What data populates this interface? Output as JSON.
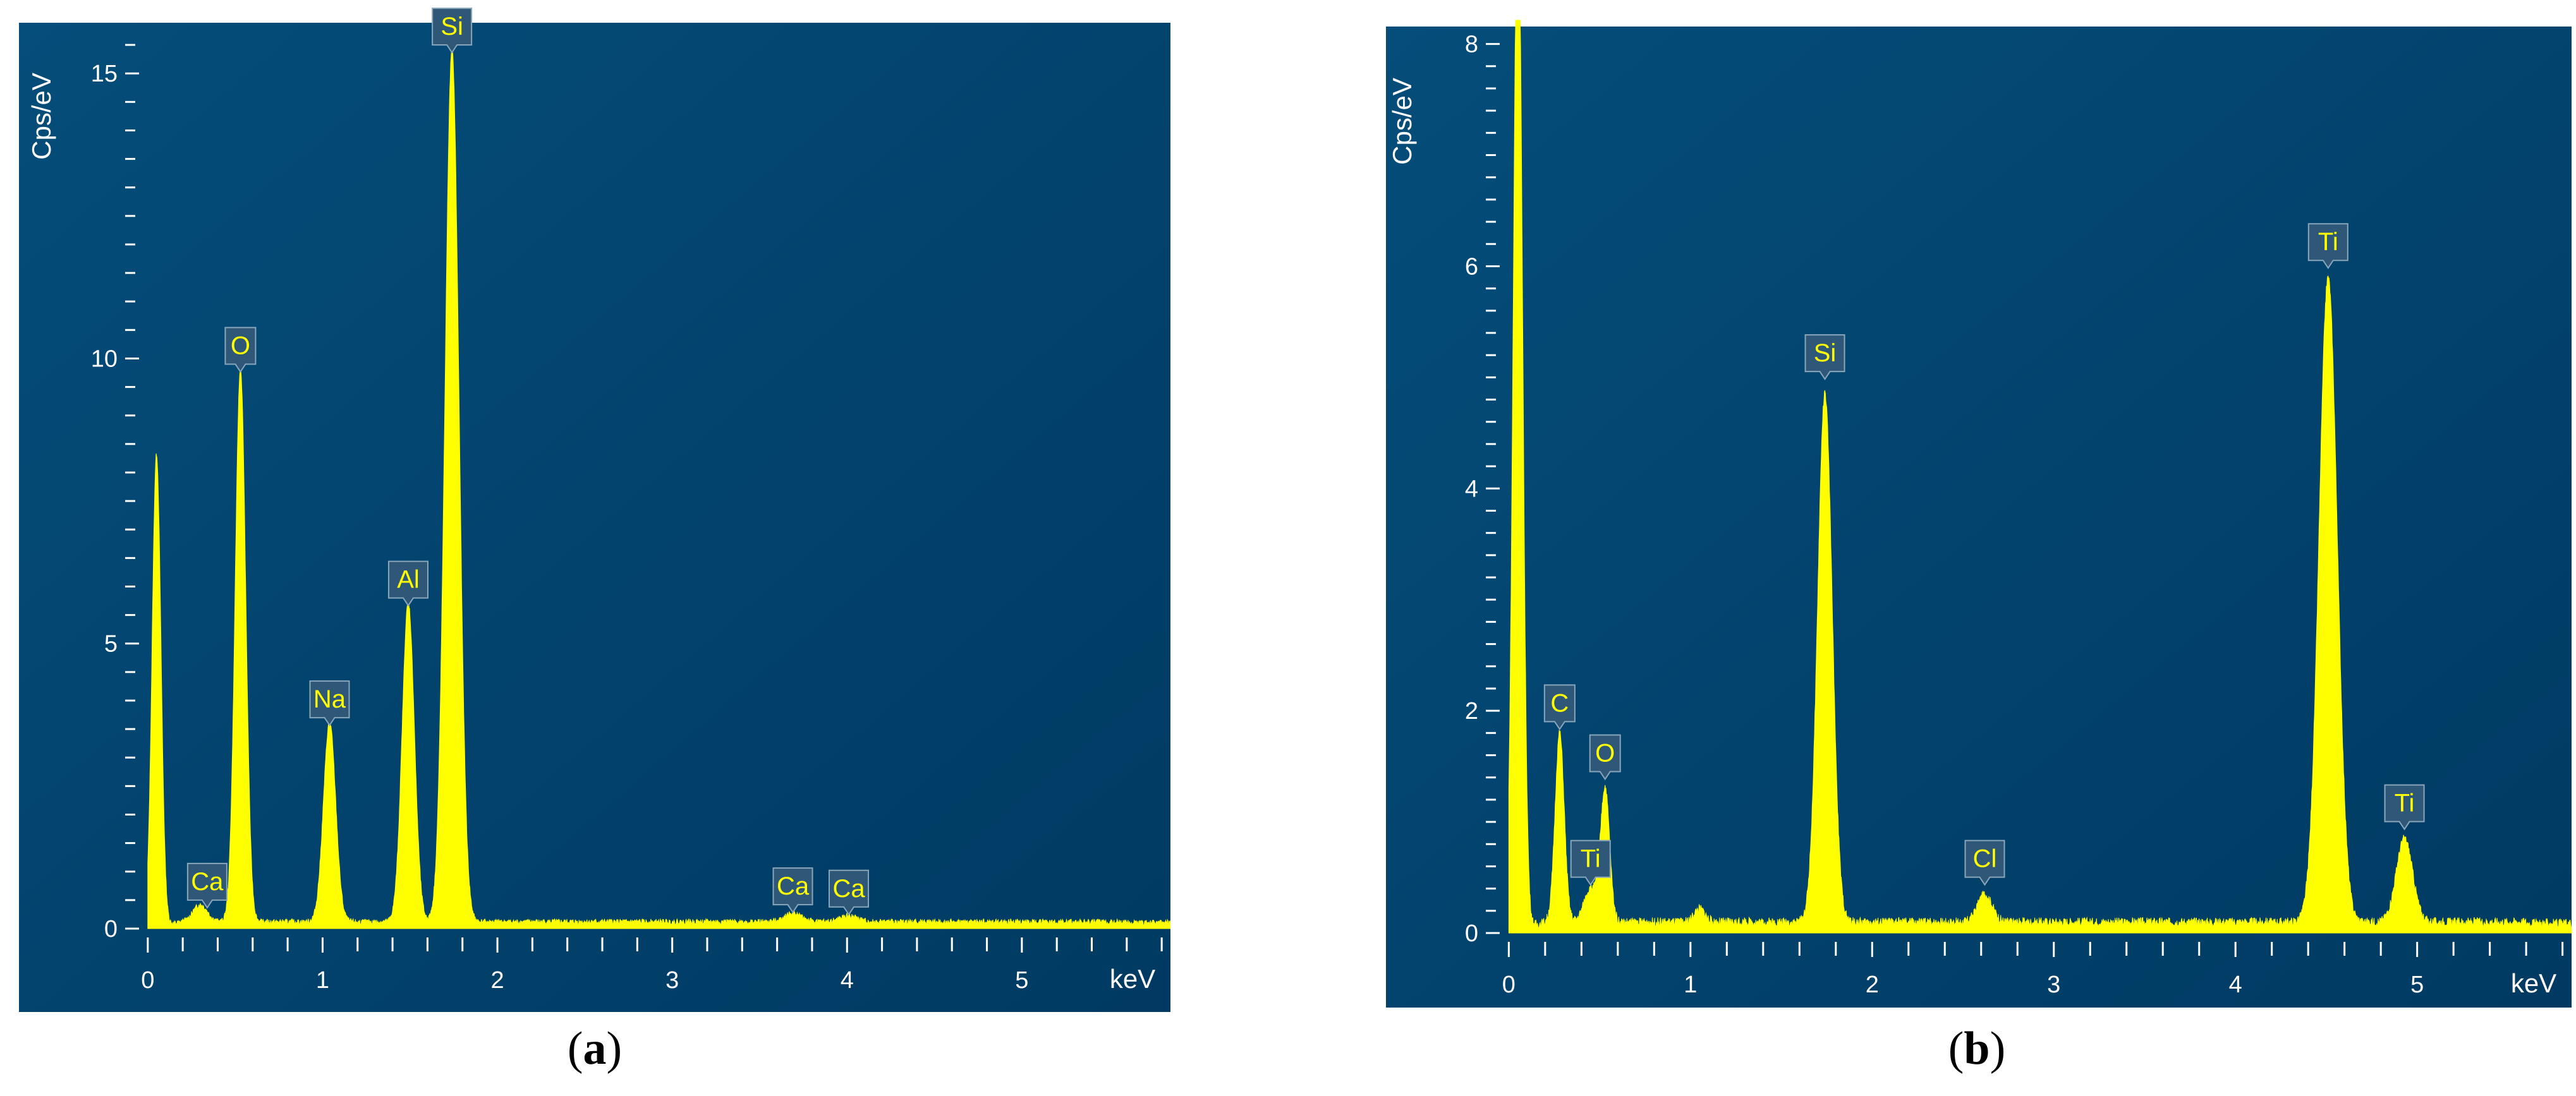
{
  "colors": {
    "plot_bg_top": "#034a76",
    "plot_bg_bottom": "#003a63",
    "spectrum": "#ffff00",
    "label_box": "#2f5878",
    "label_stroke": "#8aa6bb",
    "axis_text": "#ffffff"
  },
  "panels": [
    {
      "id": "a",
      "caption_open": "(",
      "caption_letter": "a",
      "caption_close": ")"
    },
    {
      "id": "b",
      "caption_open": "(",
      "caption_letter": "b",
      "caption_close": ")"
    }
  ],
  "chart_data": [
    {
      "type": "line",
      "ylabel": "Cps/eV",
      "xlabel": "keV",
      "xlim": [
        -0.05,
        5.85
      ],
      "ylim": [
        0,
        15.8
      ],
      "xticks": [
        0,
        1,
        2,
        3,
        4,
        5
      ],
      "yticks": [
        0,
        5,
        10,
        15
      ],
      "ymajor": 5,
      "yminor": 0.5,
      "background": 0.12,
      "peaks": [
        {
          "x": 0.05,
          "height": 8.3,
          "width": 0.025
        },
        {
          "x": 0.3,
          "height": 0.3,
          "width": 0.04
        },
        {
          "x": 0.53,
          "height": 9.7,
          "width": 0.03
        },
        {
          "x": 1.04,
          "height": 3.5,
          "width": 0.035
        },
        {
          "x": 1.49,
          "height": 5.6,
          "width": 0.035
        },
        {
          "x": 1.74,
          "height": 15.3,
          "width": 0.04
        },
        {
          "x": 3.69,
          "height": 0.15,
          "width": 0.05
        },
        {
          "x": 4.01,
          "height": 0.1,
          "width": 0.05
        }
      ],
      "labels": [
        {
          "text": "O",
          "x": 0.53,
          "y": 9.7
        },
        {
          "text": "Si",
          "x": 1.74,
          "y": 15.3
        },
        {
          "text": "Al",
          "x": 1.49,
          "y": 5.6
        },
        {
          "text": "Na",
          "x": 1.04,
          "y": 3.5
        },
        {
          "text": "Ca",
          "x": 0.34,
          "y": 0.3
        },
        {
          "text": "Ca",
          "x": 3.69,
          "y": 0.22
        },
        {
          "text": "Ca",
          "x": 4.01,
          "y": 0.18
        }
      ]
    },
    {
      "type": "line",
      "ylabel": "Cps/eV",
      "xlabel": "keV",
      "xlim": [
        -0.05,
        5.85
      ],
      "ylim": [
        0,
        8.1
      ],
      "xticks": [
        0,
        1,
        2,
        3,
        4,
        5
      ],
      "yticks": [
        0,
        2,
        4,
        6,
        8
      ],
      "ymajor": 2,
      "yminor": 0.2,
      "background": 0.1,
      "peaks": [
        {
          "x": 0.05,
          "height": 9.5,
          "width": 0.025
        },
        {
          "x": 0.28,
          "height": 1.7,
          "width": 0.025
        },
        {
          "x": 0.45,
          "height": 0.3,
          "width": 0.035
        },
        {
          "x": 0.53,
          "height": 1.2,
          "width": 0.025
        },
        {
          "x": 1.05,
          "height": 0.12,
          "width": 0.03
        },
        {
          "x": 1.74,
          "height": 4.75,
          "width": 0.04
        },
        {
          "x": 2.62,
          "height": 0.25,
          "width": 0.04
        },
        {
          "x": 4.51,
          "height": 5.8,
          "width": 0.05
        },
        {
          "x": 4.93,
          "height": 0.75,
          "width": 0.045
        }
      ],
      "labels": [
        {
          "text": "C",
          "x": 0.28,
          "y": 1.8
        },
        {
          "text": "O",
          "x": 0.53,
          "y": 1.35
        },
        {
          "text": "Ti",
          "x": 0.45,
          "y": 0.4
        },
        {
          "text": "Si",
          "x": 1.74,
          "y": 4.95
        },
        {
          "text": "Cl",
          "x": 2.62,
          "y": 0.4
        },
        {
          "text": "Ti",
          "x": 4.51,
          "y": 5.95
        },
        {
          "text": "Ti",
          "x": 4.93,
          "y": 0.9
        }
      ]
    }
  ]
}
